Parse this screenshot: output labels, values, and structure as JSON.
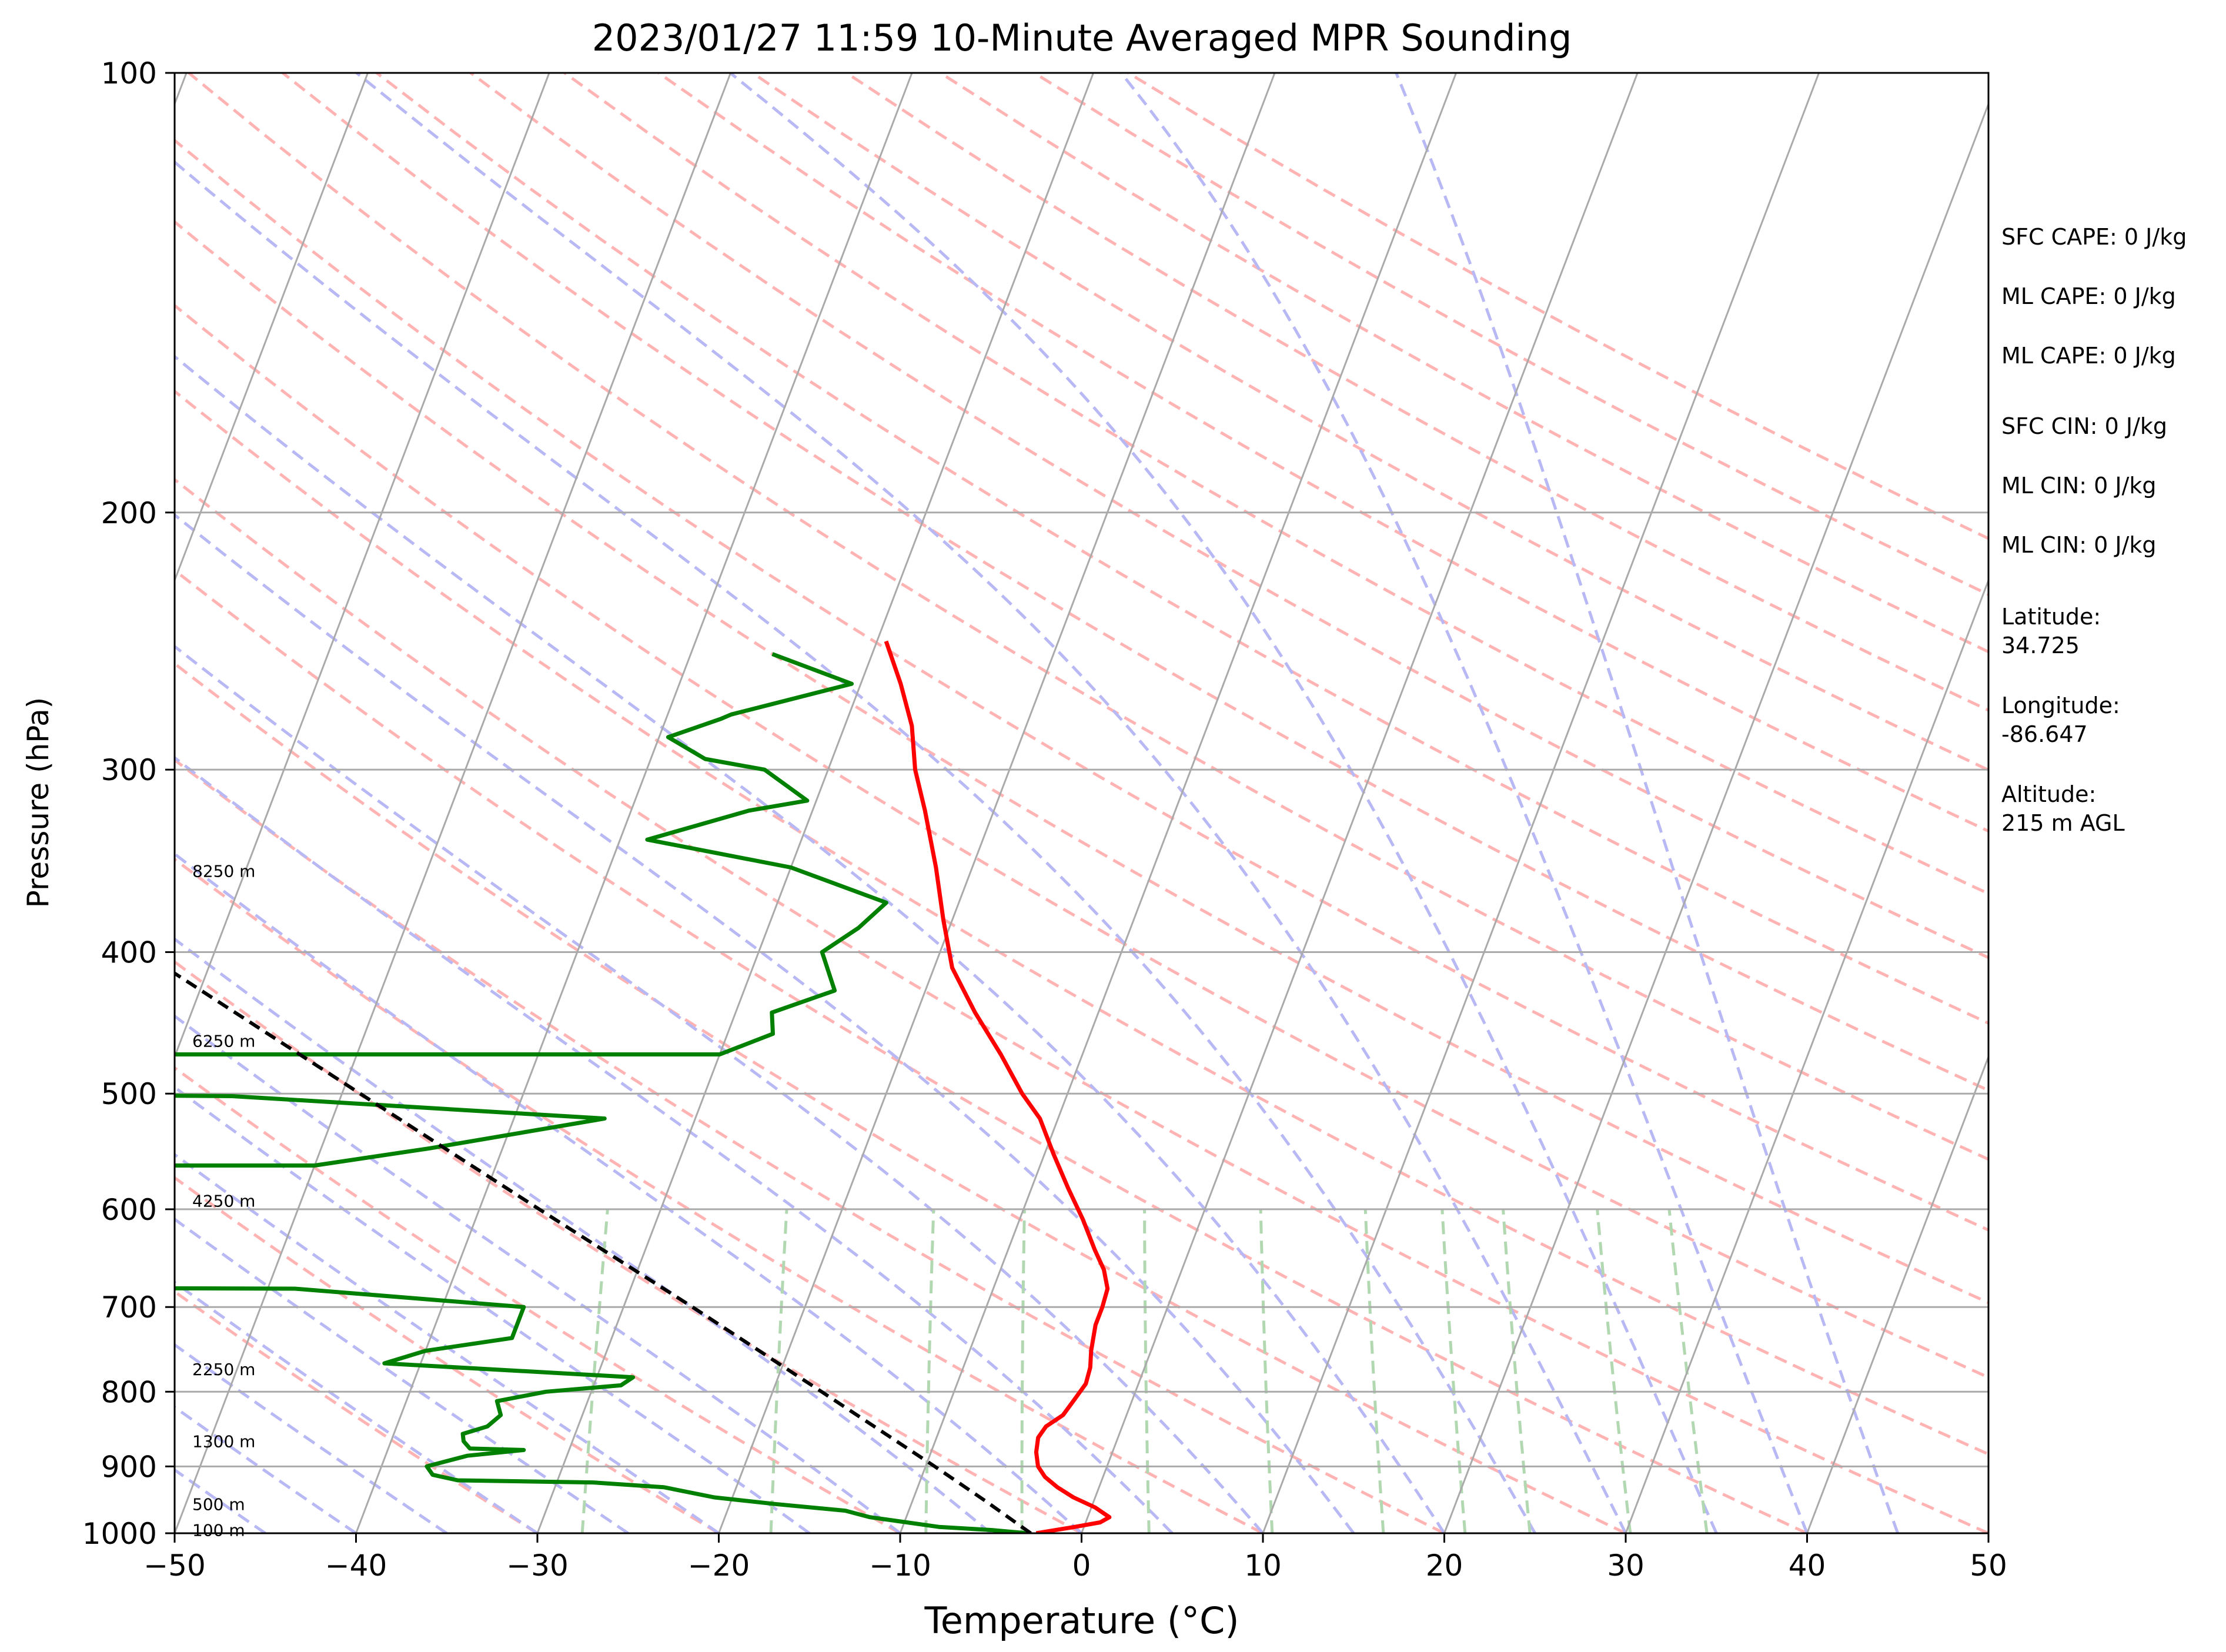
{
  "chart_data": {
    "type": "line",
    "title": "2023/01/27 11:59 10-Minute Averaged MPR Sounding",
    "xlabel": "Temperature (°C)",
    "ylabel": "Pressure (hPa)",
    "xlim": [
      -50,
      50
    ],
    "ylim": [
      1000,
      100
    ],
    "y_scale": "log",
    "skew": "skew-T",
    "x_ticks": [
      "−50",
      "−40",
      "−30",
      "−20",
      "−10",
      "0",
      "10",
      "20",
      "30",
      "40",
      "50"
    ],
    "y_ticks": [
      "100",
      "200",
      "300",
      "400",
      "500",
      "600",
      "700",
      "800",
      "900",
      "1000"
    ],
    "grid": true,
    "height_labels": [
      {
        "p": 995,
        "text": "100 m"
      },
      {
        "p": 955,
        "text": "500 m"
      },
      {
        "p": 865,
        "text": "1300 m"
      },
      {
        "p": 772,
        "text": "2250 m"
      },
      {
        "p": 592,
        "text": "4250 m"
      },
      {
        "p": 460,
        "text": "6250 m"
      },
      {
        "p": 352,
        "text": "8250 m"
      }
    ],
    "series": [
      {
        "color": "#ff0000",
        "points": [
          [
            1000,
            -2.5
          ],
          [
            995,
            -1.5
          ],
          [
            990,
            -0.5
          ],
          [
            983,
            0.8
          ],
          [
            975,
            1.2
          ],
          [
            960,
            0.2
          ],
          [
            945,
            -1.2
          ],
          [
            930,
            -2.3
          ],
          [
            915,
            -3.2
          ],
          [
            900,
            -3.8
          ],
          [
            880,
            -4.2
          ],
          [
            860,
            -4.4
          ],
          [
            845,
            -4.2
          ],
          [
            830,
            -3.5
          ],
          [
            810,
            -3.2
          ],
          [
            790,
            -2.9
          ],
          [
            770,
            -3.0
          ],
          [
            750,
            -3.3
          ],
          [
            720,
            -3.6
          ],
          [
            700,
            -3.6
          ],
          [
            680,
            -3.7
          ],
          [
            660,
            -4.3
          ],
          [
            640,
            -5.2
          ],
          [
            610,
            -6.5
          ],
          [
            580,
            -8.0
          ],
          [
            550,
            -9.5
          ],
          [
            520,
            -11.0
          ],
          [
            500,
            -12.5
          ],
          [
            470,
            -14.5
          ],
          [
            440,
            -16.8
          ],
          [
            410,
            -19.0
          ],
          [
            380,
            -20.5
          ],
          [
            350,
            -22.0
          ],
          [
            320,
            -23.8
          ],
          [
            300,
            -25.2
          ],
          [
            280,
            -26.3
          ],
          [
            262,
            -27.8
          ],
          [
            245,
            -29.5
          ]
        ]
      },
      {
        "color": "#008000",
        "points": [
          [
            1000,
            -3.0
          ],
          [
            995,
            -5.0
          ],
          [
            990,
            -8.0
          ],
          [
            975,
            -12.0
          ],
          [
            965,
            -13.5
          ],
          [
            955,
            -17.5
          ],
          [
            945,
            -21.0
          ],
          [
            930,
            -24.0
          ],
          [
            923,
            -28.0
          ],
          [
            920,
            -35.5
          ],
          [
            912,
            -37.0
          ],
          [
            900,
            -37.5
          ],
          [
            885,
            -35.5
          ],
          [
            877,
            -32.5
          ],
          [
            875,
            -35.5
          ],
          [
            865,
            -36.0
          ],
          [
            855,
            -36.2
          ],
          [
            845,
            -35.0
          ],
          [
            830,
            -34.5
          ],
          [
            812,
            -35.0
          ],
          [
            800,
            -32.5
          ],
          [
            792,
            -28.5
          ],
          [
            782,
            -28.0
          ],
          [
            765,
            -42.0
          ],
          [
            750,
            -40.0
          ],
          [
            735,
            -35.5
          ],
          [
            712,
            -35.5
          ],
          [
            700,
            -35.5
          ],
          [
            680,
            -48.5
          ],
          [
            679,
            -65.0
          ],
          [
            560,
            -58.0
          ],
          [
            560,
            -50.0
          ],
          [
            545,
            -44.0
          ],
          [
            520,
            -35.0
          ],
          [
            502,
            -56.0
          ],
          [
            501,
            -65.0
          ],
          [
            470,
            -65.0
          ],
          [
            470,
            -30.0
          ],
          [
            455,
            -27.5
          ],
          [
            440,
            -28.0
          ],
          [
            425,
            -25.0
          ],
          [
            400,
            -26.5
          ],
          [
            385,
            -25.0
          ],
          [
            370,
            -24.0
          ],
          [
            350,
            -30.0
          ],
          [
            335,
            -38.5
          ],
          [
            320,
            -33.5
          ],
          [
            315,
            -30.5
          ],
          [
            300,
            -33.5
          ],
          [
            295,
            -37.0
          ],
          [
            285,
            -39.5
          ],
          [
            277,
            -37.0
          ],
          [
            275,
            -36.5
          ],
          [
            262,
            -30.5
          ],
          [
            250,
            -35.5
          ]
        ]
      },
      {
        "color": "#000000",
        "dashed": true,
        "points": [
          [
            1000,
            -2.8
          ],
          [
            950,
            -6.0
          ],
          [
            900,
            -9.5
          ],
          [
            800,
            -17.3
          ],
          [
            700,
            -26.2
          ],
          [
            600,
            -36.7
          ],
          [
            500,
            -49.0
          ],
          [
            400,
            -64.0
          ],
          [
            310,
            -81.0
          ]
        ]
      }
    ],
    "annotations": [
      {
        "label": "SFC CAPE",
        "value": "SFC CAPE: 0 J/kg"
      },
      {
        "label": "ML CAPE",
        "value": "ML CAPE: 0 J/kg"
      },
      {
        "label": "ML CAPE",
        "value": "ML CAPE: 0 J/kg"
      },
      {
        "label": "SFC CIN",
        "value": "SFC CIN: 0 J/kg"
      },
      {
        "label": "ML CIN",
        "value": "ML CIN: 0 J/kg"
      },
      {
        "label": "ML CIN",
        "value": "ML CIN: 0 J/kg"
      }
    ],
    "location": {
      "latitude_label": "Latitude:",
      "latitude": "34.725",
      "longitude_label": "Longitude:",
      "longitude": "-86.647",
      "altitude_label": "Altitude:",
      "altitude": "215 m AGL"
    }
  }
}
